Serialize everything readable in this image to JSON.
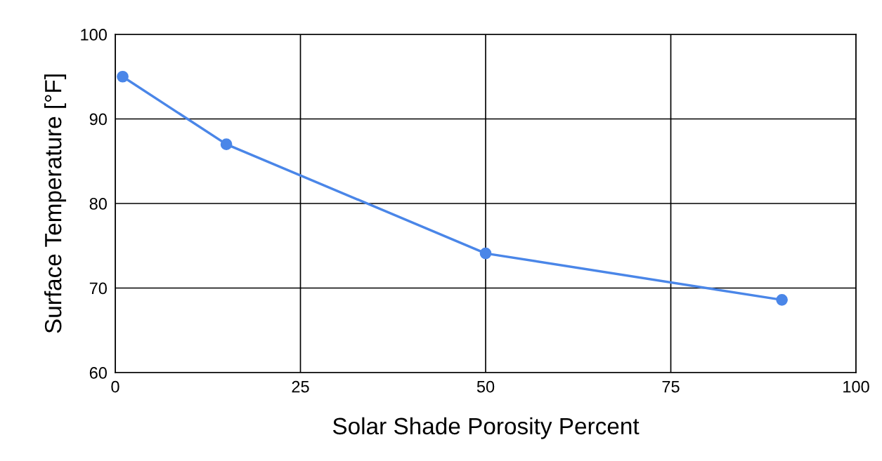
{
  "chart_data": {
    "type": "line",
    "xlabel": "Solar Shade Porosity Percent",
    "ylabel": "Surface Temperature [°F]",
    "x": [
      1,
      15,
      50,
      90
    ],
    "series": [
      {
        "color": "#4a86e8",
        "values": [
          95,
          87,
          74.1,
          68.6
        ]
      }
    ],
    "xlim": [
      0,
      100
    ],
    "xticks": [
      0,
      25,
      50,
      75,
      100
    ],
    "ylim": [
      60,
      100
    ],
    "yticks": [
      60,
      70,
      80,
      90,
      100
    ],
    "grid": true,
    "marker": "circle",
    "line_style": "solid",
    "legend": false
  }
}
